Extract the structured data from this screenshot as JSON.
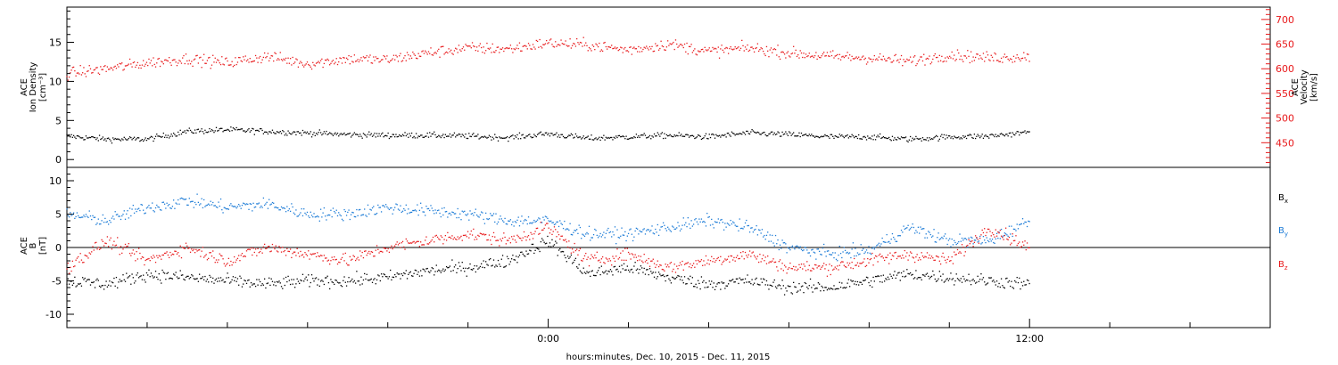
{
  "footer_label": "hours:minutes, Dec. 10, 2015 - Dec. 11, 2015",
  "time_ticks": [
    "0:00",
    "12:00"
  ],
  "colors": {
    "black": "#000000",
    "red": "#e8191b",
    "blue": "#1a7ad6"
  },
  "chart_data": [
    {
      "type": "scatter",
      "panel": "ion-density-velocity",
      "x_unit": "hours since Dec. 10, 2015 0:00",
      "xlim": [
        -12,
        18
      ],
      "left_axis": {
        "label_lines": [
          "ACE",
          "Ion Density",
          "[cm⁻³]"
        ],
        "ylim": [
          -1,
          19.5
        ],
        "ticks": [
          0,
          5,
          10,
          15
        ]
      },
      "right_axis": {
        "label_lines": [
          "ACE",
          "Velocity",
          "[km/s]"
        ],
        "ylim": [
          400,
          725
        ],
        "ticks": [
          450,
          500,
          550,
          600,
          650,
          700
        ]
      },
      "grid": false,
      "series": [
        {
          "axis": "left",
          "color": "#000000",
          "x": [
            -12,
            -11,
            -10,
            -9,
            -8,
            -7,
            -6,
            -5,
            -4,
            -3,
            -2,
            -1,
            0,
            1,
            2,
            3,
            4,
            5,
            6,
            7,
            8,
            9,
            10,
            11,
            12
          ],
          "y": [
            3.0,
            2.6,
            2.6,
            3.6,
            3.8,
            3.6,
            3.4,
            3.2,
            3.1,
            3.1,
            3.0,
            2.8,
            3.3,
            2.7,
            2.9,
            3.1,
            2.9,
            3.4,
            3.2,
            2.9,
            2.9,
            2.6,
            2.9,
            3.0,
            3.5
          ]
        },
        {
          "axis": "right",
          "color": "#e8191b",
          "x": [
            -12,
            -11,
            -10,
            -9,
            -8,
            -7,
            -6,
            -5,
            -4,
            -3,
            -2,
            -1,
            0,
            1,
            2,
            3,
            4,
            5,
            6,
            7,
            8,
            9,
            10,
            11,
            12
          ],
          "y": [
            590,
            600,
            612,
            620,
            612,
            625,
            610,
            620,
            618,
            632,
            642,
            640,
            652,
            648,
            638,
            650,
            635,
            642,
            632,
            625,
            622,
            615,
            628,
            622,
            625
          ]
        }
      ]
    },
    {
      "type": "scatter",
      "panel": "magnetic-field",
      "x_unit": "hours since Dec. 10, 2015 0:00",
      "xlim": [
        -12,
        18
      ],
      "left_axis": {
        "label_lines": [
          "ACE",
          "B",
          "[nT]"
        ],
        "ylim": [
          -12,
          12
        ],
        "ticks": [
          -10,
          -5,
          0,
          5,
          10
        ]
      },
      "zero_line": true,
      "grid": false,
      "legend_position": "right",
      "series": [
        {
          "name": "Bx",
          "color": "#000000",
          "x": [
            -12,
            -11,
            -10,
            -9,
            -8,
            -7,
            -6,
            -5,
            -4,
            -3,
            -2,
            -1,
            0,
            1,
            2,
            3,
            4,
            5,
            6,
            7,
            8,
            9,
            10,
            11,
            12
          ],
          "y": [
            -5,
            -5.5,
            -4,
            -4.5,
            -5,
            -5.5,
            -5,
            -5,
            -4.5,
            -3.5,
            -3,
            -2,
            1,
            -4,
            -3,
            -4.5,
            -5.5,
            -5,
            -6,
            -6,
            -5,
            -4,
            -4.5,
            -5,
            -5.5
          ]
        },
        {
          "name": "By",
          "color": "#1a7ad6",
          "x": [
            -12,
            -11,
            -10,
            -9,
            -8,
            -7,
            -6,
            -5,
            -4,
            -3,
            -2,
            -1,
            0,
            1,
            2,
            3,
            4,
            5,
            6,
            7,
            8,
            9,
            10,
            11,
            12
          ],
          "y": [
            5,
            4,
            6,
            7,
            6,
            6.5,
            5,
            5,
            6,
            5.5,
            5,
            4,
            4,
            2,
            2,
            3,
            4,
            3,
            0,
            -1,
            -0.5,
            3,
            1,
            1,
            4
          ]
        },
        {
          "name": "Bz",
          "color": "#e8191b",
          "x": [
            -12,
            -11,
            -10,
            -9,
            -8,
            -7,
            -6,
            -5,
            -4,
            -3,
            -2,
            -1,
            0,
            1,
            2,
            3,
            4,
            5,
            6,
            7,
            8,
            9,
            10,
            11,
            12
          ],
          "y": [
            -3,
            1,
            -2,
            0,
            -2,
            0,
            -1,
            -2,
            0,
            1,
            2,
            1,
            3,
            -2,
            -1,
            -3,
            -2,
            -1,
            -3,
            -3,
            -2,
            -1,
            -2,
            3,
            0
          ]
        }
      ]
    }
  ]
}
